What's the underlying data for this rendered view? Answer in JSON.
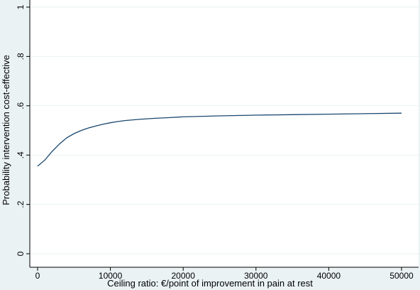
{
  "chart_data": {
    "type": "line",
    "title": "",
    "xlabel": "Ceiling ratio: €/point of improvement in pain at rest",
    "ylabel": "Probability intervention cost-effective",
    "xlim": [
      0,
      50000
    ],
    "ylim": [
      0,
      1
    ],
    "xticks": [
      0,
      10000,
      20000,
      30000,
      40000,
      50000
    ],
    "yticks": [
      0,
      0.2,
      0.4,
      0.6,
      0.8,
      1
    ],
    "xtick_labels": [
      "0",
      "10000",
      "20000",
      "30000",
      "40000",
      "50000"
    ],
    "ytick_labels": [
      "0",
      ".2",
      ".4",
      ".6",
      ".8",
      "1"
    ],
    "grid": true,
    "legend": "none",
    "series": [
      {
        "color": "#1a476f",
        "x": [
          0,
          1000,
          2000,
          3000,
          4000,
          5000,
          6000,
          7000,
          8000,
          9000,
          10000,
          11000,
          12000,
          14000,
          16000,
          18000,
          20000,
          25000,
          30000,
          35000,
          40000,
          45000,
          50000
        ],
        "y": [
          0.355,
          0.38,
          0.415,
          0.445,
          0.47,
          0.487,
          0.5,
          0.51,
          0.518,
          0.525,
          0.531,
          0.536,
          0.54,
          0.545,
          0.549,
          0.552,
          0.555,
          0.559,
          0.562,
          0.564,
          0.566,
          0.568,
          0.57
        ]
      }
    ]
  }
}
